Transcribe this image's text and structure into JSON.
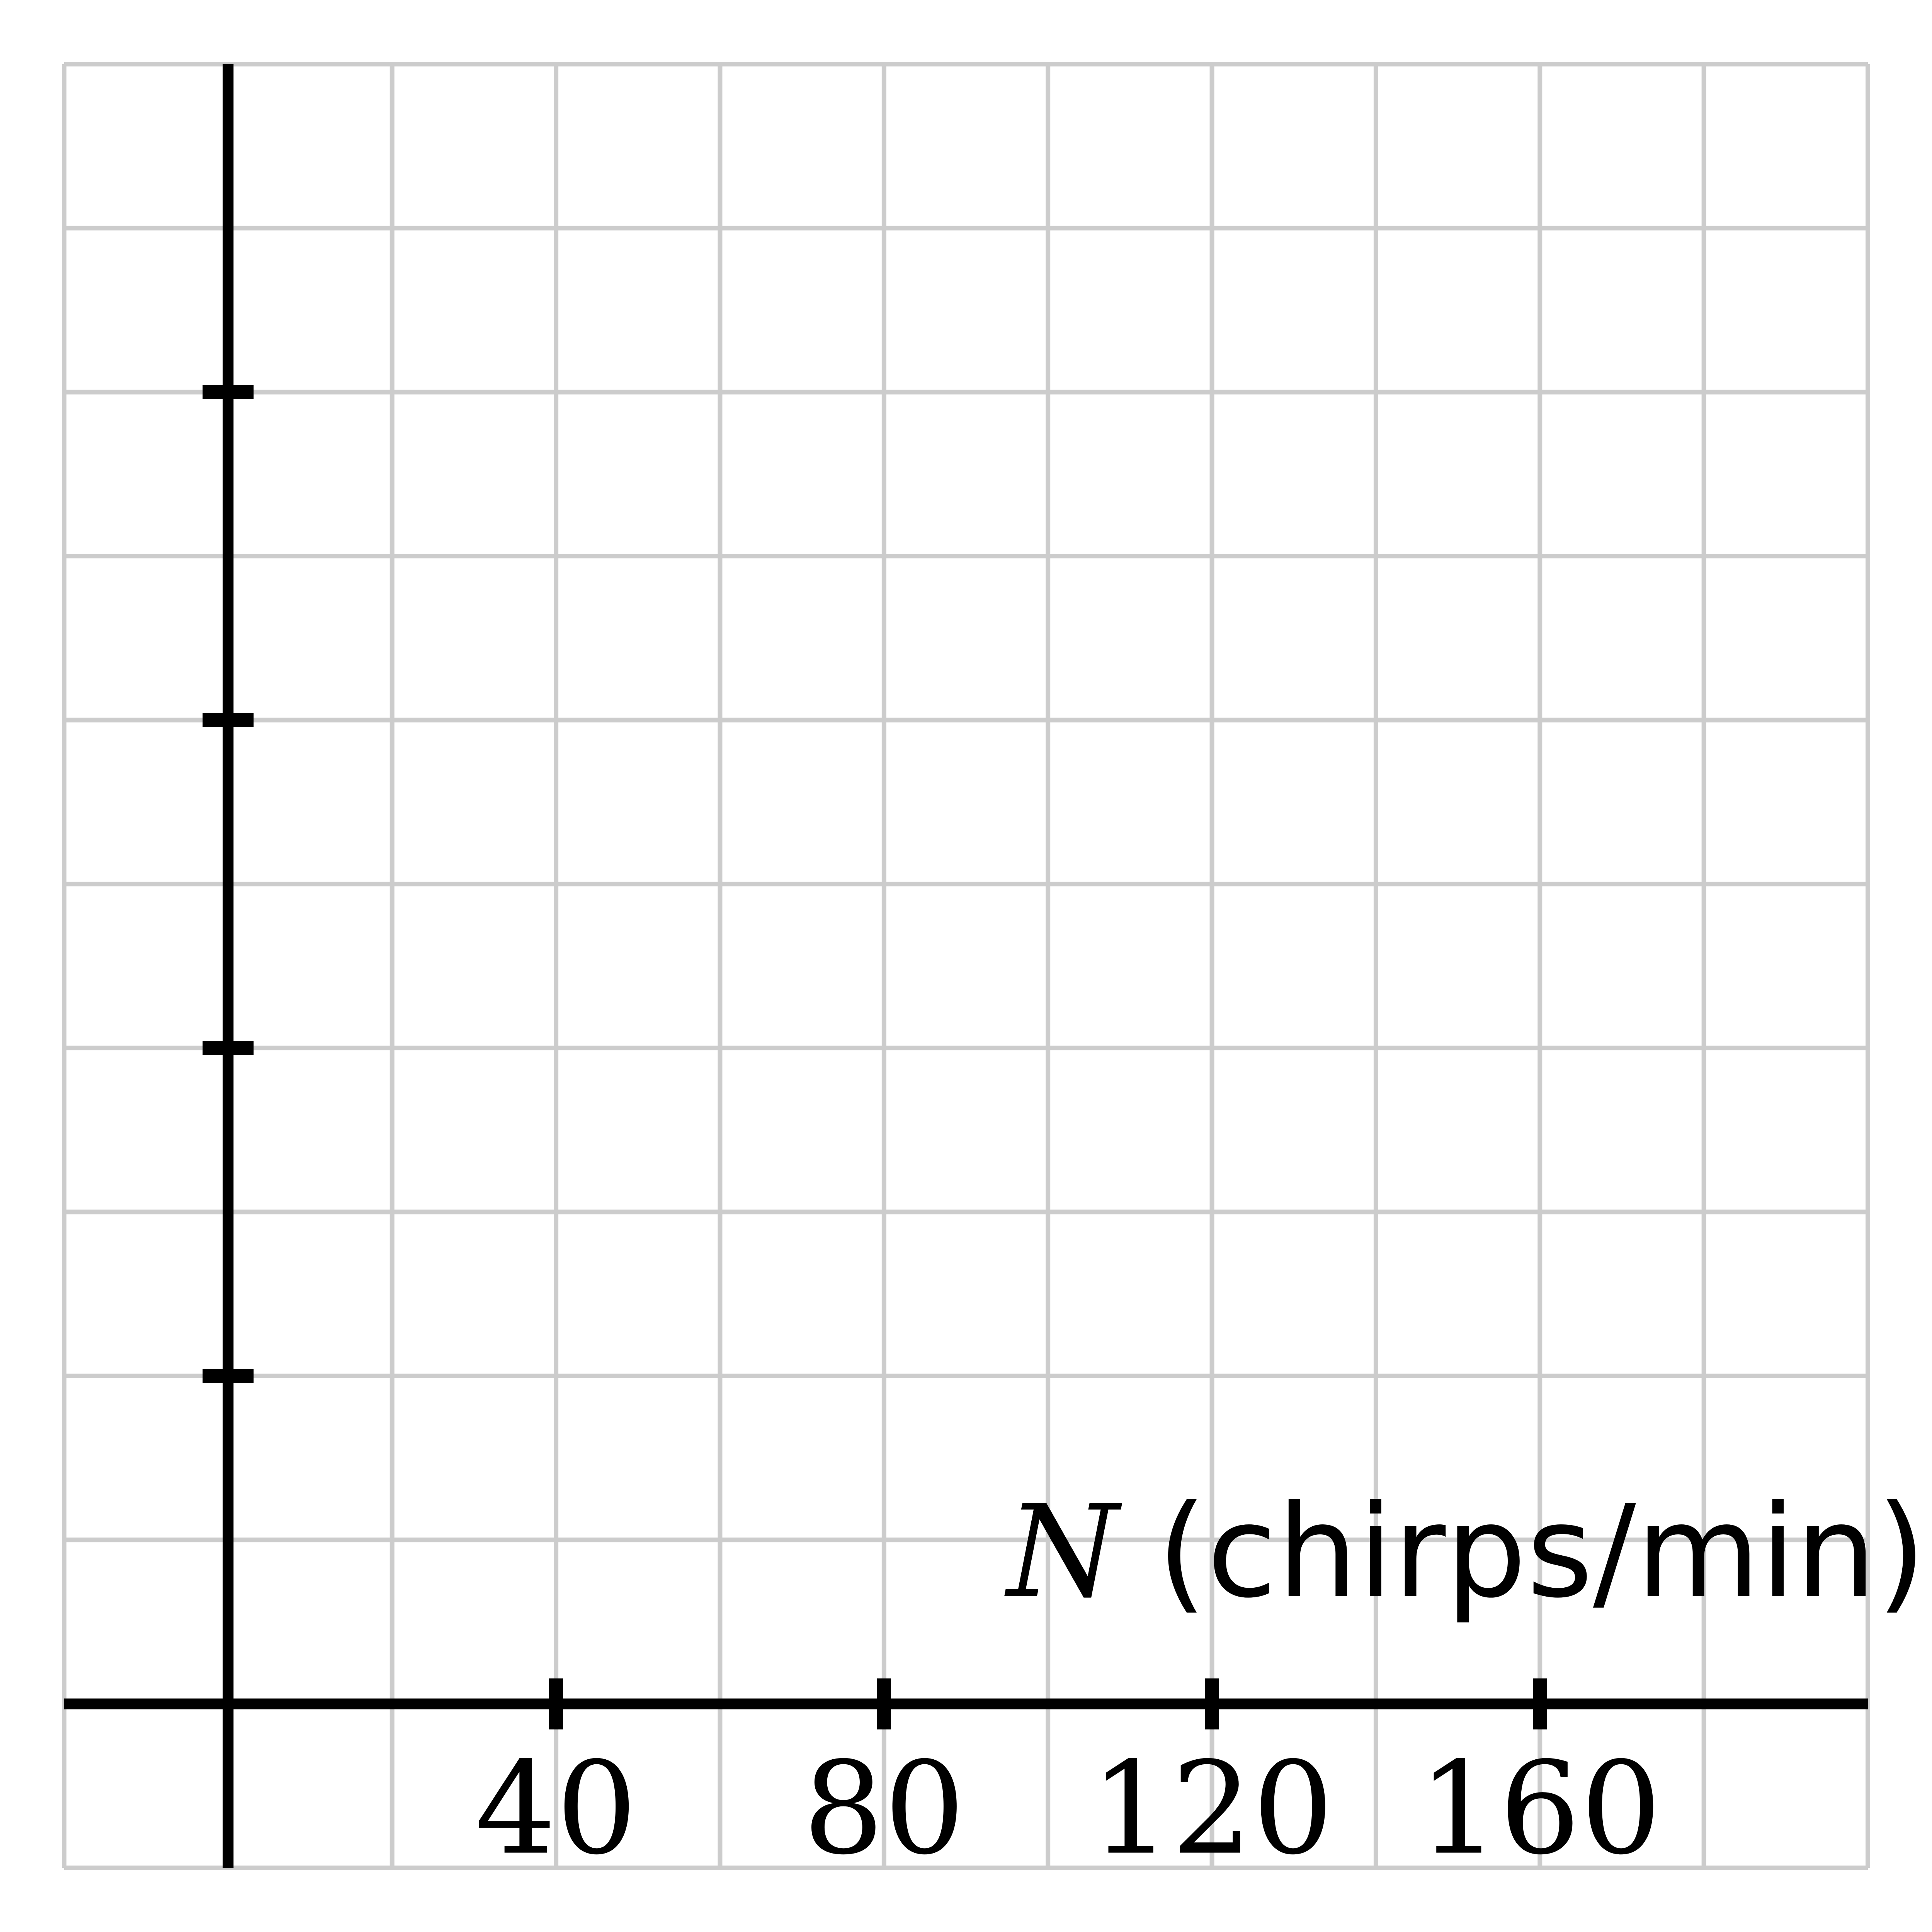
{
  "chart_data": {
    "type": "line",
    "title": "",
    "xlabel": {
      "variable": "N",
      "unit": "(chirps/min)"
    },
    "ylabel": "",
    "xlim": [
      -20,
      200
    ],
    "ylim": [
      -1,
      10
    ],
    "grid": true,
    "grid_step_x": 20,
    "grid_step_y": 1,
    "x_ticks": [
      40,
      80,
      120,
      160
    ],
    "x_tick_labels": [
      "40",
      "80",
      "120",
      "160"
    ],
    "y_ticks": [
      2,
      4,
      6,
      8
    ],
    "y_tick_labels": [],
    "series": [],
    "colors": {
      "grid": "#cccccc",
      "axes": "#000000",
      "background": "#ffffff"
    }
  }
}
